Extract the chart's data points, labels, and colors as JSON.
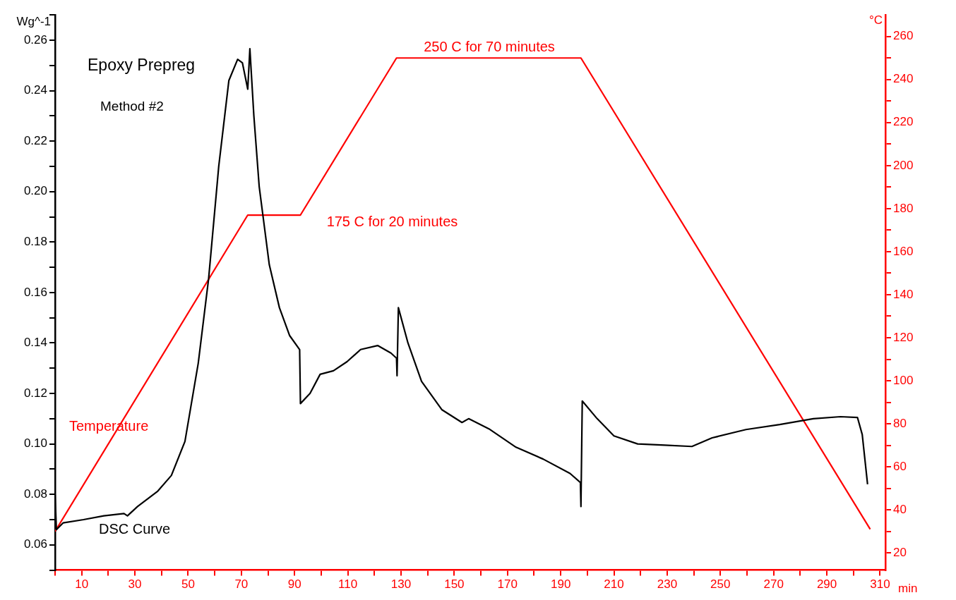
{
  "chart_data": {
    "type": "line",
    "title": "Epoxy Prepreg",
    "subtitle": "Method #2",
    "ylabel": "Wg^-1",
    "y2label": "°C",
    "xlabel": "min",
    "annotations": [
      "175 C for 20 minutes",
      "250 C for 70 minutes"
    ],
    "xlim": [
      0,
      312
    ],
    "xticks": [
      {
        "value": 0,
        "label": null
      },
      10,
      {
        "value": 20,
        "label": null
      },
      30,
      {
        "value": 40,
        "label": null
      },
      50,
      {
        "value": 60,
        "label": null
      },
      70,
      {
        "value": 80,
        "label": null
      },
      90,
      {
        "value": 100,
        "label": null
      },
      110,
      {
        "value": 120,
        "label": null
      },
      130,
      {
        "value": 140,
        "label": null
      },
      150,
      {
        "value": 160,
        "label": null
      },
      170,
      {
        "value": 180,
        "label": null
      },
      190,
      {
        "value": 200,
        "label": null
      },
      210,
      {
        "value": 220,
        "label": null
      },
      230,
      {
        "value": 240,
        "label": null
      },
      250,
      {
        "value": 260,
        "label": null
      },
      270,
      {
        "value": 280,
        "label": null
      },
      290,
      {
        "value": 300,
        "label": null
      },
      310
    ],
    "ylim": [
      0.05,
      0.27
    ],
    "yticks": [
      {
        "value": 0.05,
        "label": null
      },
      {
        "value": 0.06,
        "label": "0.06"
      },
      {
        "value": 0.07,
        "label": null
      },
      {
        "value": 0.08,
        "label": "0.08"
      },
      {
        "value": 0.09,
        "label": null
      },
      {
        "value": 0.1,
        "label": "0.10"
      },
      {
        "value": 0.11,
        "label": null
      },
      {
        "value": 0.12,
        "label": "0.12"
      },
      {
        "value": 0.13,
        "label": null
      },
      {
        "value": 0.14,
        "label": "0.14"
      },
      {
        "value": 0.15,
        "label": null
      },
      {
        "value": 0.16,
        "label": "0.16"
      },
      {
        "value": 0.17,
        "label": null
      },
      {
        "value": 0.18,
        "label": "0.18"
      },
      {
        "value": 0.19,
        "label": null
      },
      {
        "value": 0.2,
        "label": "0.20"
      },
      {
        "value": 0.21,
        "label": null
      },
      {
        "value": 0.22,
        "label": "0.22"
      },
      {
        "value": 0.23,
        "label": null
      },
      {
        "value": 0.24,
        "label": "0.24"
      },
      {
        "value": 0.25,
        "label": null
      },
      {
        "value": 0.26,
        "label": "0.26"
      },
      {
        "value": 0.27,
        "label": null
      }
    ],
    "y2lim": [
      12,
      270
    ],
    "y2ticks": [
      20,
      {
        "value": 30,
        "label": null
      },
      40,
      {
        "value": 50,
        "label": null
      },
      60,
      {
        "value": 70,
        "label": null
      },
      80,
      {
        "value": 90,
        "label": null
      },
      100,
      {
        "value": 110,
        "label": null
      },
      120,
      {
        "value": 130,
        "label": null
      },
      140,
      {
        "value": 150,
        "label": null
      },
      160,
      {
        "value": 170,
        "label": null
      },
      180,
      {
        "value": 190,
        "label": null
      },
      200,
      {
        "value": 210,
        "label": null
      },
      220,
      {
        "value": 230,
        "label": null
      },
      240,
      {
        "value": 250,
        "label": null
      },
      260
    ],
    "grid": false,
    "legend": false,
    "marker": "none",
    "line_style": "solid",
    "series": [
      {
        "name": "DSC Curve",
        "color": "#000000",
        "x": [
          0,
          0.5,
          3,
          10.7,
          18.3,
          25.9,
          27.2,
          31,
          38.6,
          43.7,
          48.8,
          53.8,
          57.7,
          61.5,
          65.3,
          68.6,
          70.4,
          72.4,
          73.2,
          74.7,
          76.7,
          80.5,
          84.3,
          88.1,
          91.9,
          92.2,
          95.8,
          99.6,
          104.6,
          109.7,
          114.8,
          121.2,
          126.2,
          128.3,
          128.5,
          129,
          132.6,
          137.7,
          145.3,
          152.9,
          155.4,
          163,
          173.2,
          183.4,
          193.5,
          197.4,
          197.6,
          198.1,
          203.7,
          210,
          218.9,
          229.1,
          239.3,
          246.9,
          259.6,
          272.3,
          284.9,
          295.1,
          301.5,
          303.3,
          305.3
        ],
        "values": [
          0.08,
          0.066,
          0.0687,
          0.07,
          0.0715,
          0.0724,
          0.0715,
          0.0752,
          0.0813,
          0.0875,
          0.101,
          0.132,
          0.1655,
          0.21,
          0.244,
          0.2524,
          0.251,
          0.2406,
          0.2566,
          0.23,
          0.202,
          0.171,
          0.154,
          0.143,
          0.1374,
          0.116,
          0.12,
          0.1276,
          0.129,
          0.1326,
          0.1374,
          0.139,
          0.136,
          0.134,
          0.127,
          0.154,
          0.14,
          0.1248,
          0.1136,
          0.1085,
          0.11,
          0.106,
          0.0987,
          0.094,
          0.0883,
          0.0847,
          0.0752,
          0.117,
          0.11,
          0.1032,
          0.1,
          0.0995,
          0.099,
          0.1024,
          0.1057,
          0.1077,
          0.11,
          0.1108,
          0.1105,
          0.1037,
          0.084
        ]
      },
      {
        "name": "Temperature",
        "color": "#ff0000",
        "axis": "y2",
        "x": [
          0,
          72.4,
          92.2,
          128.3,
          197.6,
          306.3
        ],
        "values": [
          30,
          177,
          177,
          250,
          250,
          31
        ]
      }
    ]
  }
}
